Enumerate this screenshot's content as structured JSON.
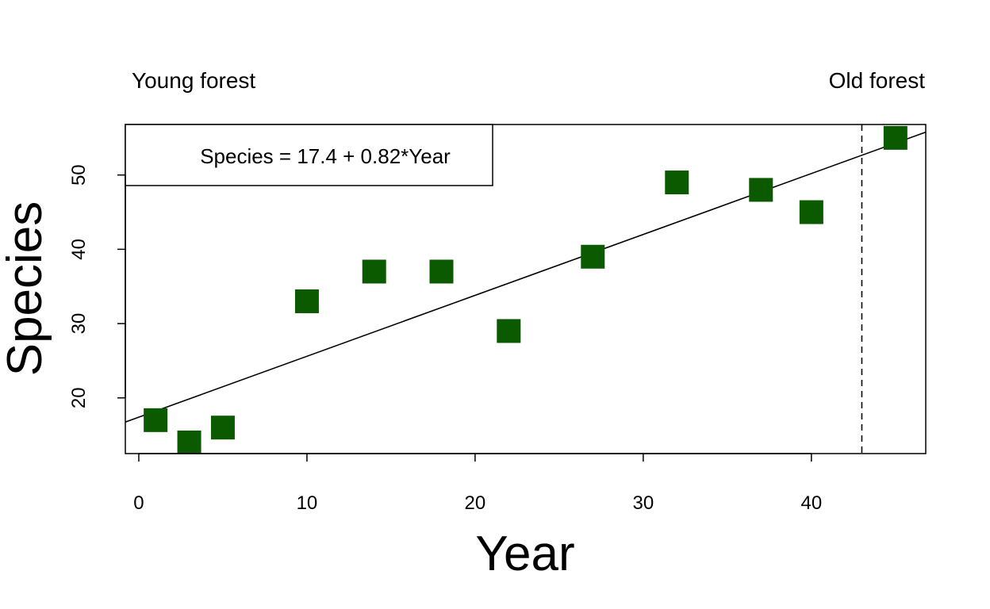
{
  "chart_data": {
    "type": "scatter",
    "title": "",
    "xlabel": "Year",
    "ylabel": "Species",
    "xlim": [
      -0.8,
      46.8
    ],
    "ylim": [
      12.5,
      56.8
    ],
    "xticks": [
      0,
      10,
      20,
      30,
      40
    ],
    "yticks": [
      20,
      30,
      40,
      50
    ],
    "xtick_labels": [
      "0",
      "10",
      "20",
      "30",
      "40"
    ],
    "ytick_labels": [
      "20",
      "30",
      "40",
      "50"
    ],
    "grid": false,
    "series": [
      {
        "marker": "filled-square",
        "color": "#0b5a00",
        "x": [
          1,
          3,
          5,
          10,
          14,
          18,
          22,
          27,
          32,
          37,
          40,
          45
        ],
        "y": [
          17,
          14,
          16,
          33,
          37,
          37,
          29,
          39,
          49,
          48,
          45,
          55
        ]
      }
    ],
    "fit_line": {
      "intercept": 17.4,
      "slope": 0.82,
      "color": "#000000"
    },
    "vline": {
      "x": 43,
      "style": "dashed",
      "color": "#000000"
    },
    "annotations": {
      "left_label": "Young forest",
      "right_label": "Old forest",
      "equation": "Species = 17.4 + 0.82*Year"
    }
  }
}
